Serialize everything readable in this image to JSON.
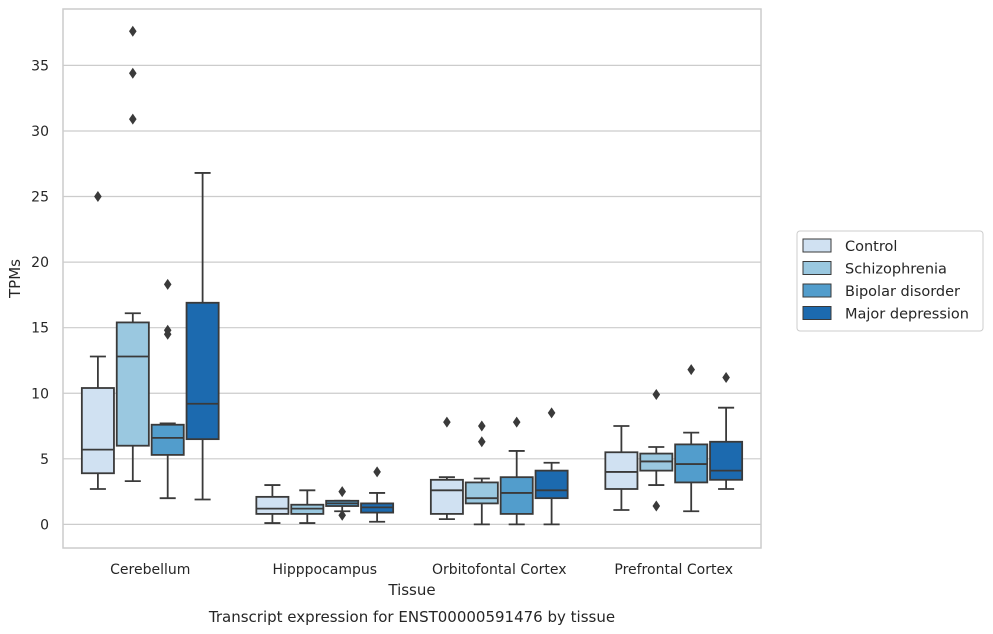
{
  "chart_data": {
    "type": "box",
    "title": "Transcript expression for ENST00000591476 by tissue",
    "xlabel": "Tissue",
    "ylabel": "TPMs",
    "ylim": [
      -1.8,
      39.3
    ],
    "yticks": [
      0,
      5,
      10,
      15,
      20,
      25,
      30,
      35
    ],
    "grid": "horizontal",
    "legend_position": "right",
    "categories": [
      "Cerebellum",
      "Hipppocampus",
      "Orbitofontal Cortex",
      "Prefrontal Cortex"
    ],
    "series": [
      {
        "name": "Control",
        "color": "#d0e1f2",
        "boxes": [
          {
            "whislo": 2.7,
            "q1": 3.9,
            "med": 5.7,
            "q3": 10.4,
            "whishi": 12.8,
            "fliers": [
              25.0
            ]
          },
          {
            "whislo": 0.1,
            "q1": 0.8,
            "med": 1.2,
            "q3": 2.1,
            "whishi": 3.0,
            "fliers": []
          },
          {
            "whislo": 0.4,
            "q1": 0.8,
            "med": 2.6,
            "q3": 3.4,
            "whishi": 3.6,
            "fliers": [
              7.8
            ]
          },
          {
            "whislo": 1.1,
            "q1": 2.7,
            "med": 4.0,
            "q3": 5.5,
            "whishi": 7.5,
            "fliers": []
          }
        ]
      },
      {
        "name": "Schizophrenia",
        "color": "#9ac8e0",
        "boxes": [
          {
            "whislo": 3.3,
            "q1": 6.0,
            "med": 12.8,
            "q3": 15.4,
            "whishi": 16.1,
            "fliers": [
              30.9,
              34.4,
              37.6
            ]
          },
          {
            "whislo": 0.1,
            "q1": 0.8,
            "med": 1.2,
            "q3": 1.5,
            "whishi": 2.6,
            "fliers": []
          },
          {
            "whislo": 0.0,
            "q1": 1.6,
            "med": 2.0,
            "q3": 3.2,
            "whishi": 3.5,
            "fliers": [
              6.3,
              7.5
            ]
          },
          {
            "whislo": 3.0,
            "q1": 4.1,
            "med": 4.8,
            "q3": 5.4,
            "whishi": 5.9,
            "fliers": [
              1.4,
              9.9
            ]
          }
        ]
      },
      {
        "name": "Bipolar disorder",
        "color": "#529dcc",
        "boxes": [
          {
            "whislo": 2.0,
            "q1": 5.3,
            "med": 6.6,
            "q3": 7.6,
            "whishi": 7.7,
            "fliers": [
              14.5,
              14.8,
              18.3
            ]
          },
          {
            "whislo": 1.0,
            "q1": 1.4,
            "med": 1.6,
            "q3": 1.8,
            "whishi": 1.8,
            "fliers": [
              0.7,
              2.5
            ]
          },
          {
            "whislo": 0.0,
            "q1": 0.8,
            "med": 2.4,
            "q3": 3.6,
            "whishi": 5.6,
            "fliers": [
              7.8
            ]
          },
          {
            "whislo": 1.0,
            "q1": 3.2,
            "med": 4.6,
            "q3": 6.1,
            "whishi": 7.0,
            "fliers": [
              11.8
            ]
          }
        ]
      },
      {
        "name": "Major depression",
        "color": "#1c6aaf",
        "boxes": [
          {
            "whislo": 1.9,
            "q1": 6.5,
            "med": 9.2,
            "q3": 16.9,
            "whishi": 26.8,
            "fliers": []
          },
          {
            "whislo": 0.2,
            "q1": 0.9,
            "med": 1.3,
            "q3": 1.6,
            "whishi": 2.4,
            "fliers": [
              4.0
            ]
          },
          {
            "whislo": 0.0,
            "q1": 2.0,
            "med": 2.6,
            "q3": 4.1,
            "whishi": 4.7,
            "fliers": [
              8.5
            ]
          },
          {
            "whislo": 2.7,
            "q1": 3.4,
            "med": 4.1,
            "q3": 6.3,
            "whishi": 8.9,
            "fliers": [
              11.2
            ]
          }
        ]
      }
    ]
  }
}
